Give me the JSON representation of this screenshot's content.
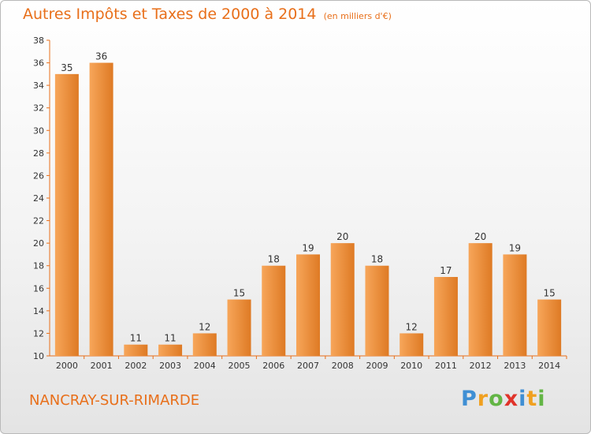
{
  "chart_data": {
    "type": "bar",
    "title": "Autres Impôts et Taxes de 2000 à 2014",
    "unit_note": "(en milliers d'€)",
    "categories": [
      "2000",
      "2001",
      "2002",
      "2003",
      "2004",
      "2005",
      "2006",
      "2007",
      "2008",
      "2009",
      "2010",
      "2011",
      "2012",
      "2013",
      "2014"
    ],
    "values": [
      35,
      36,
      11,
      11,
      12,
      15,
      18,
      19,
      20,
      18,
      12,
      17,
      20,
      19,
      15
    ],
    "ylim": [
      10,
      38
    ],
    "yticks": [
      10,
      12,
      14,
      16,
      18,
      20,
      22,
      24,
      26,
      28,
      30,
      32,
      34,
      36,
      38
    ],
    "grid": false,
    "bar_color_light": "#f7a65a",
    "bar_color_dark": "#de7a24",
    "axis_color": "#e86f1a"
  },
  "footer": {
    "commune": "NANCRAY-SUR-RIMARDE"
  },
  "logo": {
    "text": "Proxiti",
    "letters": [
      {
        "ch": "P",
        "color": "#3f8fd4"
      },
      {
        "ch": "r",
        "color": "#f0a020"
      },
      {
        "ch": "o",
        "color": "#63b545"
      },
      {
        "ch": "x",
        "color": "#e0332a"
      },
      {
        "ch": "i",
        "color": "#3f8fd4"
      },
      {
        "ch": "t",
        "color": "#f0a020"
      },
      {
        "ch": "i",
        "color": "#63b545"
      }
    ]
  }
}
